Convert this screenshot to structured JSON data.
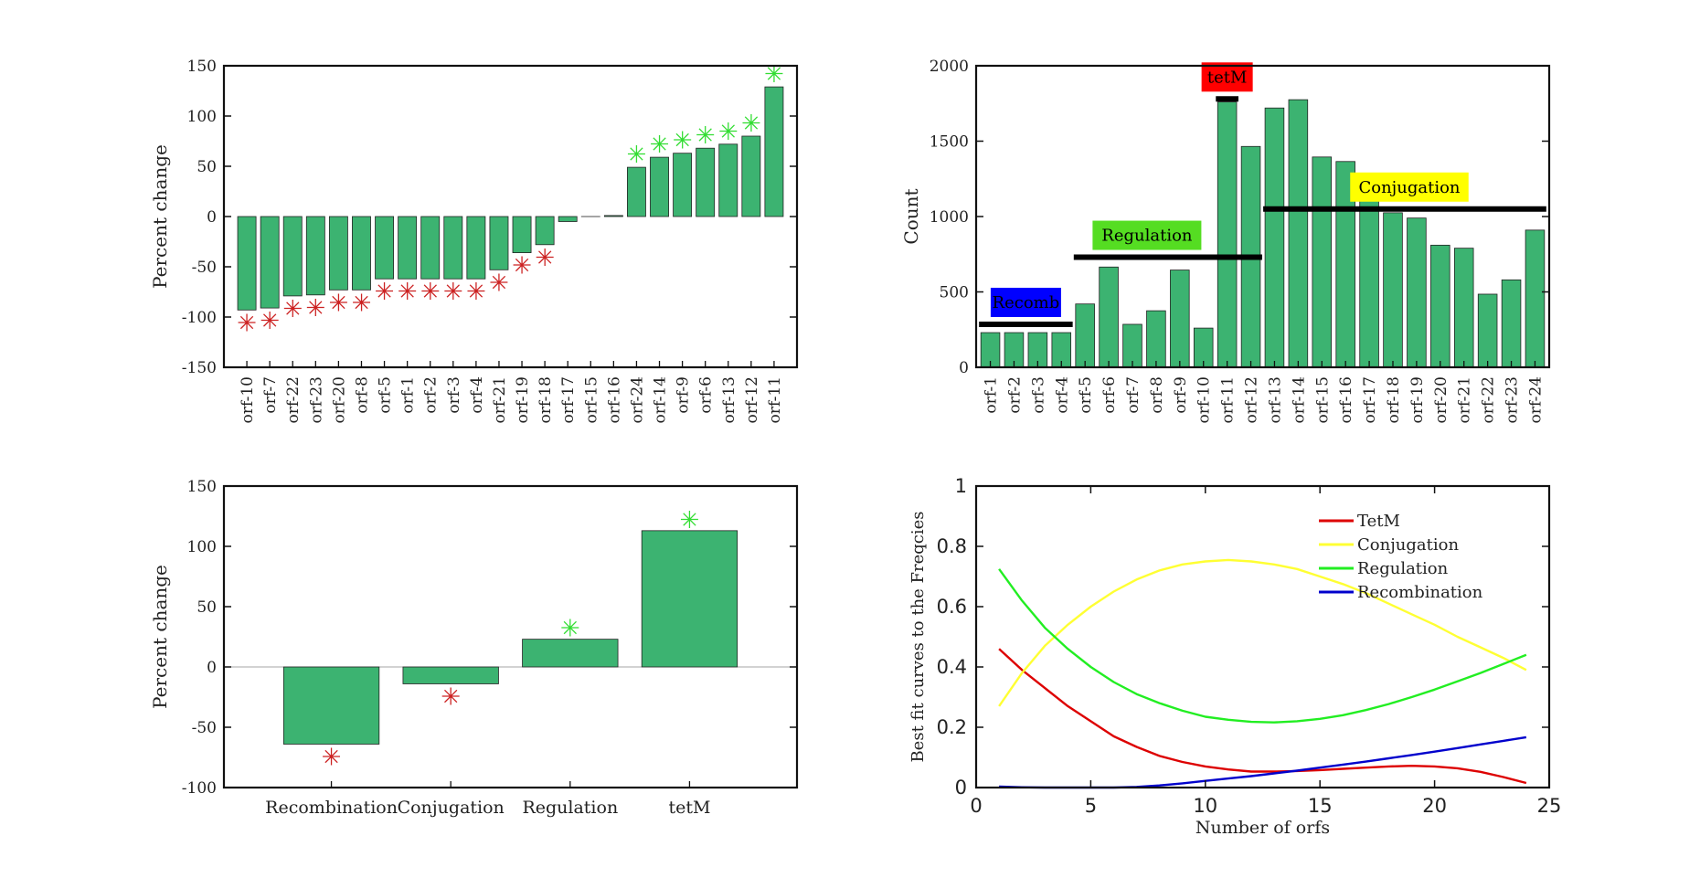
{
  "colors": {
    "bar": "#3CB371",
    "up_star": "#33DD33",
    "down_star": "#CC2222"
  },
  "chart_data": [
    {
      "id": "orf-percent",
      "type": "bar",
      "title": "",
      "xlabel": "",
      "ylabel": "Percent change",
      "ylim": [
        -150,
        150
      ],
      "yticks": [
        -150,
        -100,
        -50,
        0,
        50,
        100,
        150
      ],
      "categories": [
        "orf-10",
        "orf-7",
        "orf-22",
        "orf-23",
        "orf-20",
        "orf-8",
        "orf-5",
        "orf-1",
        "orf-2",
        "orf-3",
        "orf-4",
        "orf-21",
        "orf-19",
        "orf-18",
        "orf-17",
        "orf-15",
        "orf-16",
        "orf-24",
        "orf-14",
        "orf-9",
        "orf-6",
        "orf-13",
        "orf-12",
        "orf-11"
      ],
      "values": [
        -93,
        -91,
        -79,
        -78,
        -73,
        -73,
        -62,
        -62,
        -62,
        -62,
        -62,
        -53,
        -36,
        -28,
        -5,
        0,
        1,
        49,
        59,
        63,
        68,
        72,
        80,
        129
      ],
      "significance": [
        "down",
        "down",
        "down",
        "down",
        "down",
        "down",
        "down",
        "down",
        "down",
        "down",
        "down",
        "down",
        "down",
        "down",
        "",
        "",
        "",
        "up",
        "up",
        "up",
        "up",
        "up",
        "up",
        "up"
      ]
    },
    {
      "id": "orf-count",
      "type": "bar",
      "title": "",
      "xlabel": "",
      "ylabel": "Count",
      "ylim": [
        0,
        2000
      ],
      "yticks": [
        0,
        500,
        1000,
        1500,
        2000
      ],
      "categories": [
        "orf-1",
        "orf-2",
        "orf-3",
        "orf-4",
        "orf-5",
        "orf-6",
        "orf-7",
        "orf-8",
        "orf-9",
        "orf-10",
        "orf-11",
        "orf-12",
        "orf-13",
        "orf-14",
        "orf-15",
        "orf-16",
        "orf-17",
        "orf-18",
        "orf-19",
        "orf-20",
        "orf-21",
        "orf-22",
        "orf-23",
        "orf-24"
      ],
      "values": [
        230,
        230,
        230,
        230,
        420,
        665,
        285,
        375,
        645,
        260,
        1760,
        1465,
        1720,
        1775,
        1395,
        1365,
        1270,
        1025,
        990,
        810,
        790,
        485,
        580,
        910
      ],
      "annotations": [
        {
          "label": "Recomb",
          "from": 1,
          "to": 4,
          "line_y": 285,
          "bg": "#0000FF",
          "fg": "#000000"
        },
        {
          "label": "Regulation",
          "from": 5,
          "to": 12,
          "line_y": 730,
          "bg": "#55DD22",
          "fg": "#000000"
        },
        {
          "label": "tetM",
          "from": 11,
          "to": 11,
          "line_y": 1780,
          "bg": "#FF0000",
          "fg": "#000000"
        },
        {
          "label": "Conjugation",
          "from": 13,
          "to": 24,
          "line_y": 1050,
          "bg": "#FFFF00",
          "fg": "#000000"
        }
      ]
    },
    {
      "id": "group-percent",
      "type": "bar",
      "title": "",
      "xlabel": "",
      "ylabel": "Percent change",
      "ylim": [
        -100,
        150
      ],
      "yticks": [
        -100,
        -50,
        0,
        50,
        100,
        150
      ],
      "categories": [
        "Recombination",
        "Conjugation",
        "Regulation",
        "tetM"
      ],
      "values": [
        -64,
        -14,
        23,
        113
      ],
      "significance": [
        "down",
        "down",
        "up",
        "up"
      ]
    },
    {
      "id": "fit-curves",
      "type": "line",
      "title": "",
      "xlabel": "Number of orfs",
      "ylabel": "Best fit curves to the Freqcies",
      "xlim": [
        0,
        25
      ],
      "ylim": [
        0,
        1
      ],
      "xticks": [
        0,
        5,
        10,
        15,
        20,
        25
      ],
      "yticks": [
        0,
        0.2,
        0.4,
        0.6,
        0.8,
        1
      ],
      "legend_position": "top-right",
      "series": [
        {
          "name": "TetM",
          "color": "#DD0000",
          "x": [
            1,
            2,
            3,
            4,
            5,
            6,
            7,
            8,
            9,
            10,
            11,
            12,
            13,
            14,
            15,
            16,
            17,
            18,
            19,
            20,
            21,
            22,
            23,
            24
          ],
          "y": [
            0.46,
            0.39,
            0.33,
            0.27,
            0.22,
            0.17,
            0.135,
            0.105,
            0.085,
            0.07,
            0.06,
            0.053,
            0.053,
            0.055,
            0.058,
            0.062,
            0.066,
            0.07,
            0.072,
            0.07,
            0.064,
            0.052,
            0.035,
            0.015
          ]
        },
        {
          "name": "Conjugation",
          "color": "#FFFF33",
          "x": [
            1,
            2,
            3,
            4,
            5,
            6,
            7,
            8,
            9,
            10,
            11,
            12,
            13,
            14,
            15,
            16,
            17,
            18,
            19,
            20,
            21,
            22,
            23,
            24
          ],
          "y": [
            0.27,
            0.38,
            0.47,
            0.54,
            0.6,
            0.65,
            0.69,
            0.72,
            0.74,
            0.75,
            0.755,
            0.75,
            0.74,
            0.725,
            0.7,
            0.675,
            0.645,
            0.61,
            0.575,
            0.54,
            0.5,
            0.465,
            0.43,
            0.39
          ]
        },
        {
          "name": "Regulation",
          "color": "#22EE22",
          "x": [
            1,
            2,
            3,
            4,
            5,
            6,
            7,
            8,
            9,
            10,
            11,
            12,
            13,
            14,
            15,
            16,
            17,
            18,
            19,
            20,
            21,
            22,
            23,
            24
          ],
          "y": [
            0.725,
            0.62,
            0.53,
            0.46,
            0.4,
            0.35,
            0.31,
            0.28,
            0.255,
            0.235,
            0.225,
            0.218,
            0.216,
            0.22,
            0.228,
            0.24,
            0.257,
            0.277,
            0.3,
            0.325,
            0.352,
            0.38,
            0.41,
            0.44
          ]
        },
        {
          "name": "Recombination",
          "color": "#0000CC",
          "x": [
            1,
            2,
            3,
            4,
            5,
            6,
            7,
            8,
            9,
            10,
            11,
            12,
            13,
            14,
            15,
            16,
            17,
            18,
            19,
            20,
            21,
            22,
            23,
            24
          ],
          "y": [
            0.003,
            0.001,
            0,
            0,
            0,
            0,
            0.002,
            0.007,
            0.014,
            0.022,
            0.03,
            0.038,
            0.047,
            0.056,
            0.066,
            0.076,
            0.086,
            0.097,
            0.108,
            0.119,
            0.131,
            0.143,
            0.155,
            0.167
          ]
        }
      ]
    }
  ]
}
